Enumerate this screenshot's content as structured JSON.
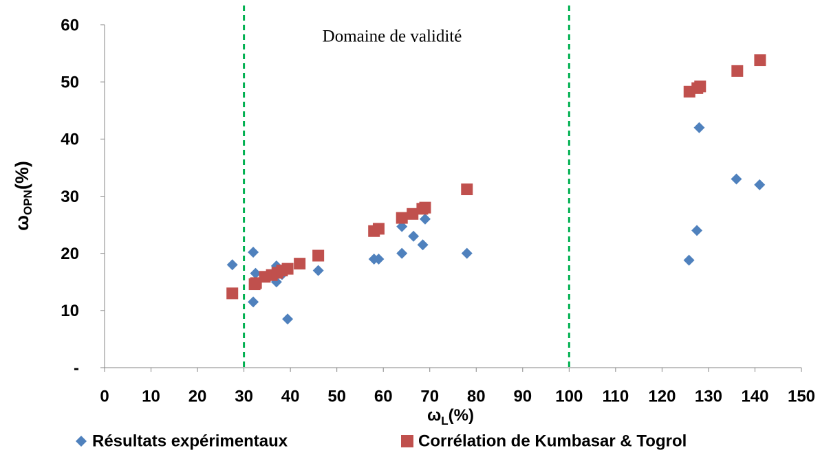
{
  "chart_data": {
    "type": "scatter",
    "x_label": {
      "symbol": "ω",
      "subscript": "L",
      "unit": "(%)"
    },
    "y_label": {
      "symbol": "ω",
      "subscript": "OPN",
      "unit": "(%)"
    },
    "annotation": "Domaine de validité",
    "vlines": [
      30,
      100
    ],
    "vline_color": "#00b050",
    "xlim": [
      0,
      150
    ],
    "xticks": [
      0,
      10,
      20,
      30,
      40,
      50,
      60,
      70,
      80,
      90,
      100,
      110,
      120,
      130,
      140,
      150
    ],
    "ylim": [
      0,
      60
    ],
    "yticks": [
      {
        "value": 0,
        "label": "-"
      },
      10,
      20,
      30,
      40,
      50,
      60
    ],
    "legend": "bottom",
    "series": [
      {
        "name": "Résultats expérimentaux",
        "color": "#4f81bd",
        "marker": "diamond",
        "x": [
          27.5,
          32,
          32.5,
          32,
          37,
          37,
          38.2,
          39.4,
          46,
          58,
          59,
          64,
          64,
          66.5,
          68.5,
          69,
          78,
          125.8,
          127.5,
          128,
          136,
          141
        ],
        "values": [
          18,
          11.5,
          16.5,
          20.2,
          17.8,
          15,
          16.3,
          8.5,
          17,
          19,
          19,
          20,
          24.7,
          23,
          21.5,
          26,
          20,
          18.8,
          24,
          42,
          33,
          32
        ]
      },
      {
        "name": "Corrélation de Kumbasar & Togrol",
        "color": "#c0504d",
        "marker": "square",
        "x": [
          27.5,
          32.3,
          32.6,
          34.5,
          36,
          37.2,
          38.2,
          39.4,
          42,
          46,
          58,
          59,
          64,
          66.3,
          68.4,
          69,
          78,
          125.9,
          127.6,
          128.2,
          136.2,
          141.1
        ],
        "values": [
          13,
          14.6,
          14.8,
          15.9,
          16.2,
          16.6,
          17,
          17.3,
          18.2,
          19.6,
          23.9,
          24.3,
          26.2,
          26.9,
          27.8,
          28,
          31.2,
          48.3,
          48.9,
          49.2,
          51.9,
          53.8
        ]
      }
    ]
  }
}
